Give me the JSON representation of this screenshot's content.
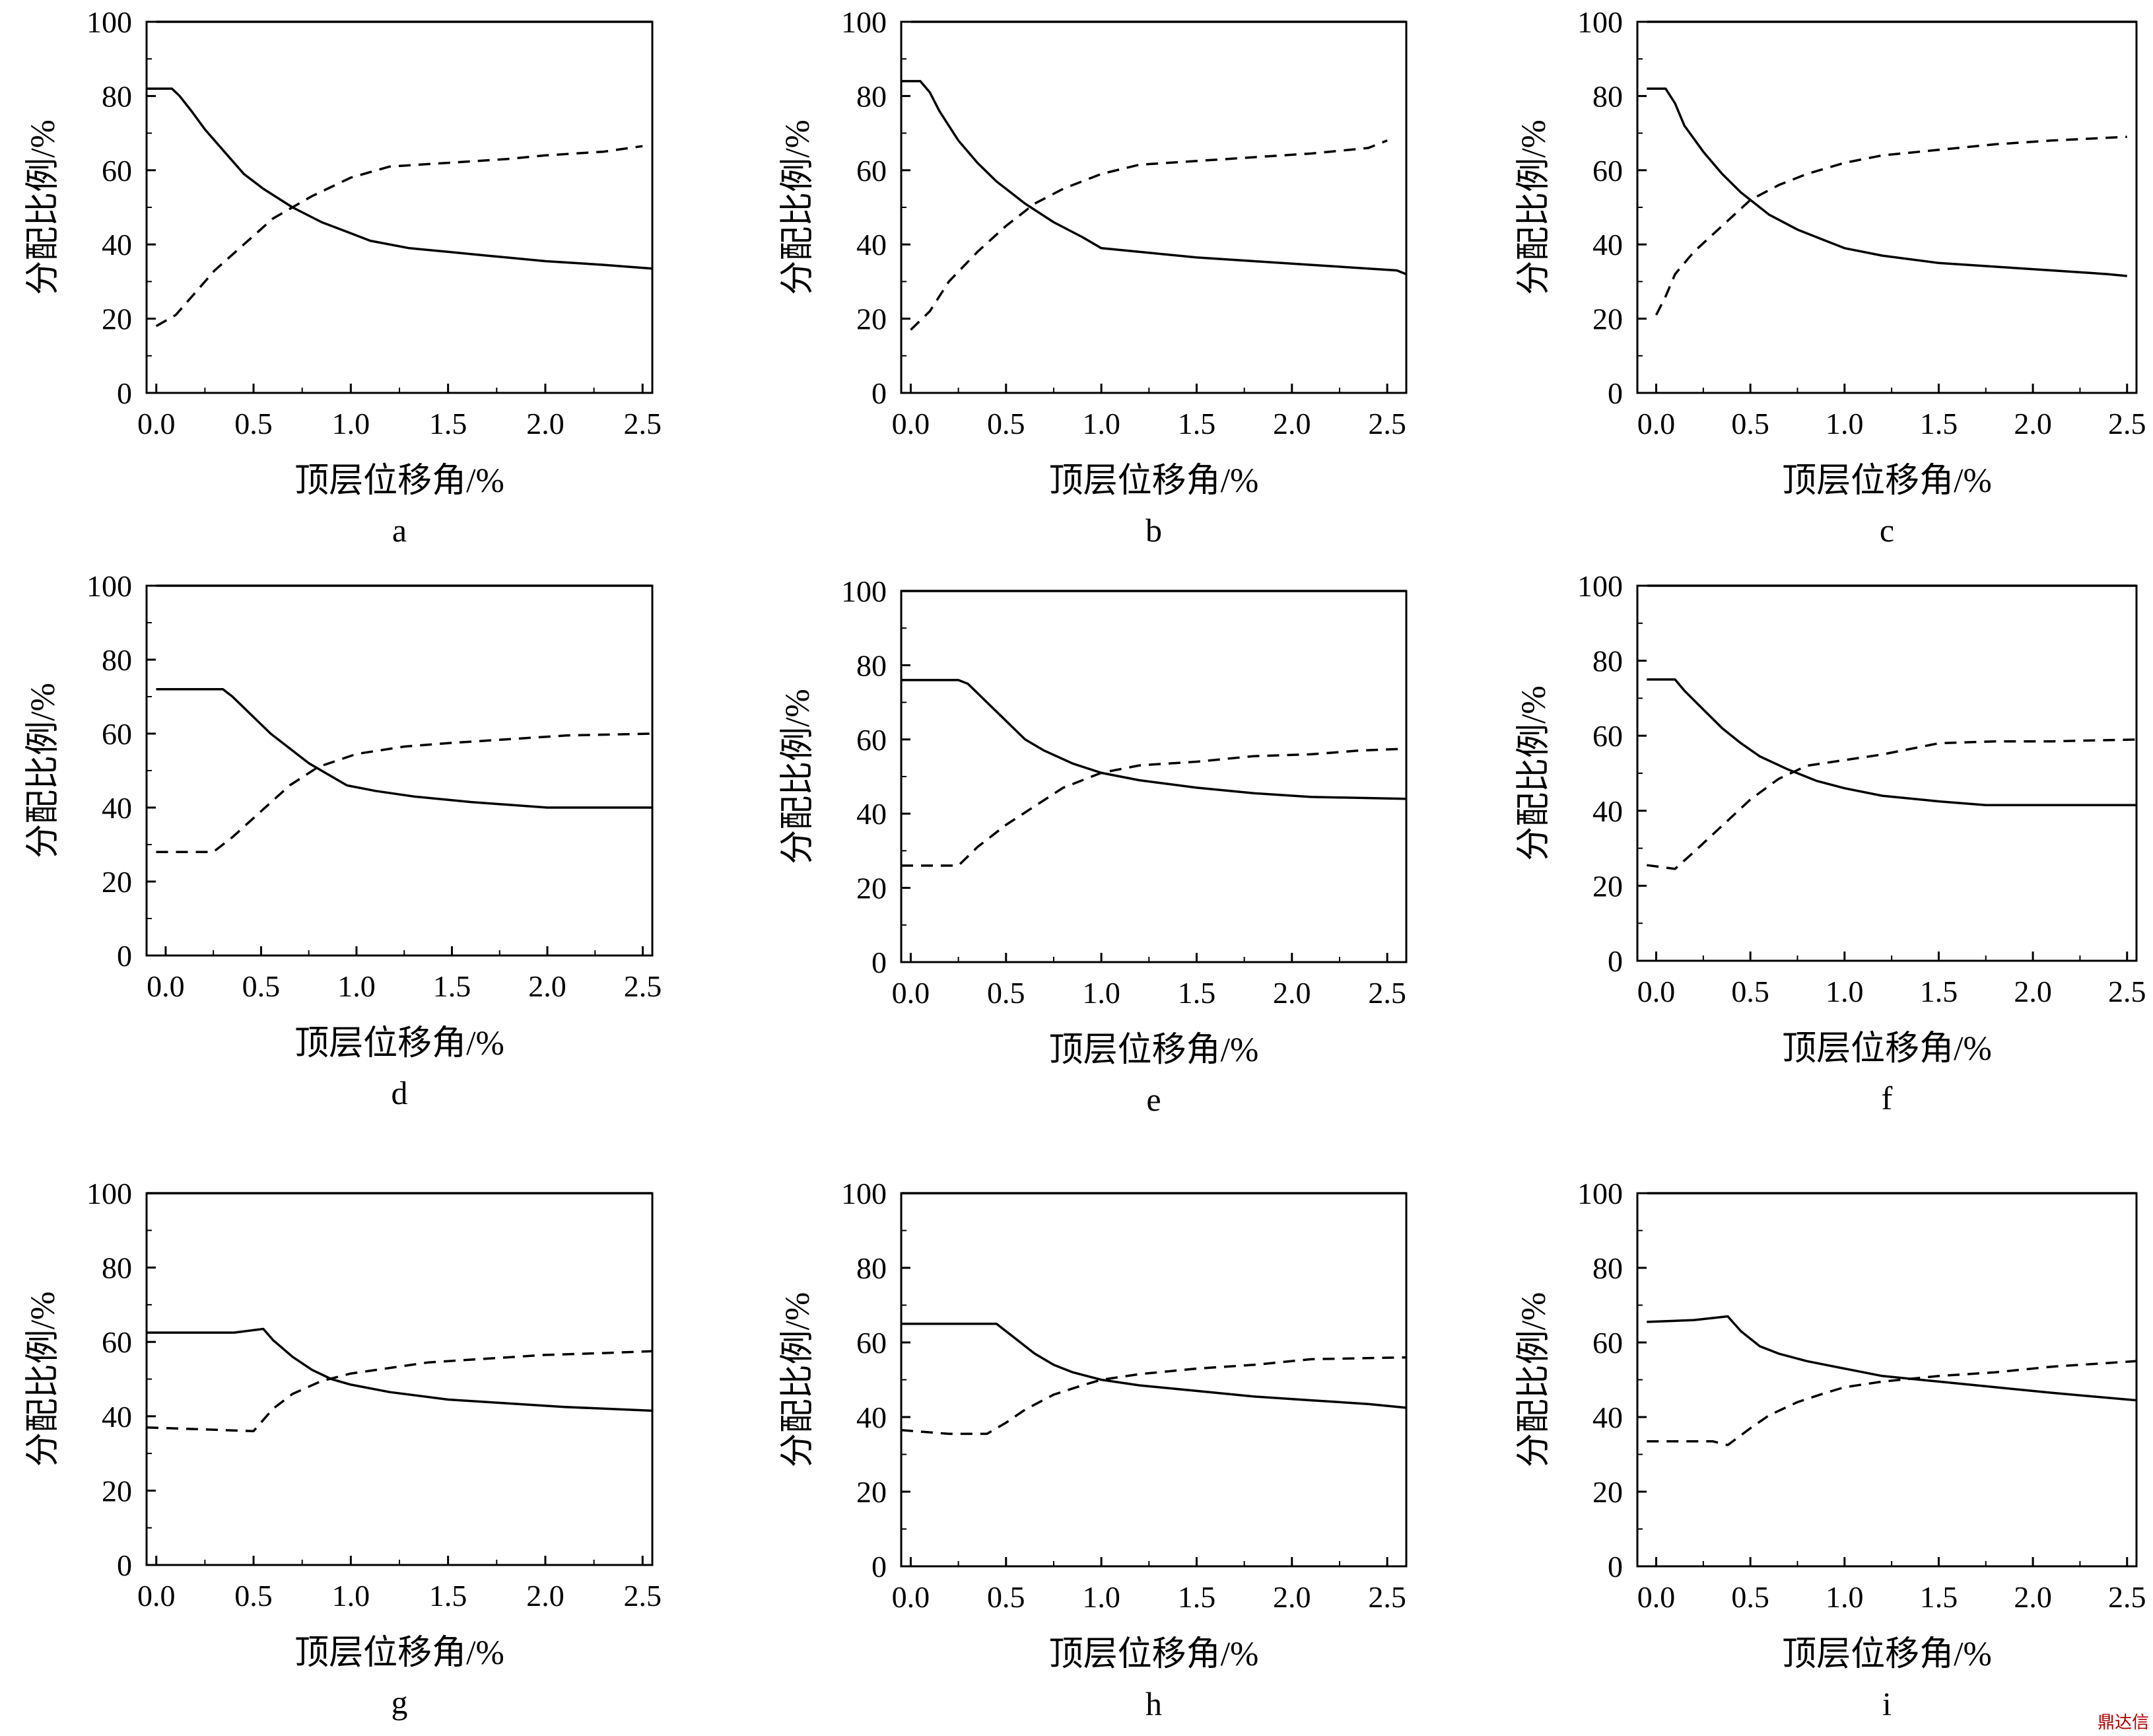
{
  "watermark": "鼎达信",
  "colors": {
    "line": "#000000",
    "background": "#ffffff"
  },
  "chart_data": [
    {
      "type": "line",
      "panel": "a",
      "xlabel": "顶层位移角/%",
      "ylabel": "分配比例/%",
      "xlim": [
        -0.05,
        2.55
      ],
      "ylim": [
        0,
        100
      ],
      "xticks": [
        "0.0",
        "0.5",
        "1.0",
        "1.5",
        "2.0",
        "2.5"
      ],
      "yticks": [
        "0",
        "20",
        "40",
        "60",
        "80",
        "100"
      ],
      "series": [
        {
          "style": "solid",
          "x": [
            0,
            2.55
          ],
          "y": [
            100,
            100
          ]
        },
        {
          "style": "solid",
          "x": [
            -0.05,
            0.08,
            0.12,
            0.18,
            0.25,
            0.35,
            0.45,
            0.55,
            0.7,
            0.85,
            1.0,
            1.1,
            1.3,
            1.5,
            1.7,
            2.0,
            2.3,
            2.55
          ],
          "y": [
            82,
            82,
            80,
            76,
            71,
            65,
            59,
            55,
            50,
            46,
            43,
            41,
            39,
            38,
            37,
            35.5,
            34.5,
            33.5
          ]
        },
        {
          "style": "dashed",
          "x": [
            0.0,
            0.1,
            0.2,
            0.3,
            0.45,
            0.6,
            0.8,
            1.0,
            1.2,
            1.5,
            1.8,
            2.0,
            2.3,
            2.5
          ],
          "y": [
            18,
            21,
            27,
            33,
            40,
            47,
            53,
            58,
            61,
            62,
            63,
            64,
            65,
            66.5
          ]
        }
      ]
    },
    {
      "type": "line",
      "panel": "b",
      "xlabel": "顶层位移角/%",
      "ylabel": "分配比例/%",
      "xlim": [
        -0.05,
        2.6
      ],
      "ylim": [
        0,
        100
      ],
      "xticks": [
        "0.0",
        "0.5",
        "1.0",
        "1.5",
        "2.0",
        "2.5"
      ],
      "yticks": [
        "0",
        "20",
        "40",
        "60",
        "80",
        "100"
      ],
      "series": [
        {
          "style": "solid",
          "x": [
            0,
            2.6
          ],
          "y": [
            100,
            100
          ]
        },
        {
          "style": "solid",
          "x": [
            -0.05,
            0.05,
            0.1,
            0.15,
            0.25,
            0.35,
            0.45,
            0.6,
            0.75,
            0.9,
            1.0,
            1.2,
            1.5,
            1.8,
            2.1,
            2.4,
            2.55,
            2.6
          ],
          "y": [
            84,
            84,
            81,
            76,
            68,
            62,
            57,
            51,
            46,
            42,
            39,
            38,
            36.5,
            35.5,
            34.5,
            33.5,
            33,
            32
          ]
        },
        {
          "style": "dashed",
          "x": [
            0.0,
            0.1,
            0.2,
            0.35,
            0.5,
            0.65,
            0.8,
            1.0,
            1.2,
            1.5,
            1.8,
            2.1,
            2.4,
            2.5
          ],
          "y": [
            17,
            22,
            30,
            38,
            45,
            51,
            55,
            59,
            61.5,
            62.5,
            63.5,
            64.5,
            66,
            68
          ]
        }
      ]
    },
    {
      "type": "line",
      "panel": "c",
      "xlabel": "顶层位移角/%",
      "ylabel": "分配比例/%",
      "xlim": [
        -0.1,
        2.55
      ],
      "ylim": [
        0,
        100
      ],
      "xticks": [
        "0.0",
        "0.5",
        "1.0",
        "1.5",
        "2.0",
        "2.5"
      ],
      "yticks": [
        "0",
        "20",
        "40",
        "60",
        "80",
        "100"
      ],
      "series": [
        {
          "style": "solid",
          "x": [
            -0.05,
            2.55
          ],
          "y": [
            100,
            100
          ]
        },
        {
          "style": "solid",
          "x": [
            -0.05,
            0.05,
            0.1,
            0.15,
            0.25,
            0.35,
            0.45,
            0.6,
            0.75,
            0.9,
            1.0,
            1.2,
            1.5,
            1.8,
            2.1,
            2.4,
            2.5
          ],
          "y": [
            82,
            82,
            78,
            72,
            65,
            59,
            54,
            48,
            44,
            41,
            39,
            37,
            35,
            34,
            33,
            32,
            31.5
          ]
        },
        {
          "style": "dashed",
          "x": [
            0.0,
            0.05,
            0.1,
            0.2,
            0.35,
            0.5,
            0.65,
            0.8,
            1.0,
            1.2,
            1.5,
            1.8,
            2.1,
            2.5
          ],
          "y": [
            21,
            26,
            32,
            38,
            45,
            52,
            56,
            59,
            62,
            64,
            65.5,
            67,
            68,
            69
          ]
        }
      ]
    },
    {
      "type": "line",
      "panel": "d",
      "xlabel": "顶层位移角/%",
      "ylabel": "分配比例/%",
      "xlim": [
        -0.1,
        2.55
      ],
      "ylim": [
        0,
        100
      ],
      "xticks": [
        "0.0",
        "0.5",
        "1.0",
        "1.5",
        "2.0",
        "2.5"
      ],
      "yticks": [
        "0",
        "20",
        "40",
        "60",
        "80",
        "100"
      ],
      "series": [
        {
          "style": "solid",
          "x": [
            -0.05,
            2.55
          ],
          "y": [
            100,
            100
          ]
        },
        {
          "style": "solid",
          "x": [
            -0.05,
            0.3,
            0.35,
            0.45,
            0.55,
            0.65,
            0.75,
            0.85,
            0.95,
            1.1,
            1.3,
            1.6,
            2.0,
            2.55
          ],
          "y": [
            72,
            72,
            70,
            65,
            60,
            56,
            52,
            49,
            46,
            44.5,
            43,
            41.5,
            40,
            40
          ]
        },
        {
          "style": "dashed",
          "x": [
            -0.05,
            0.25,
            0.35,
            0.5,
            0.65,
            0.8,
            1.0,
            1.25,
            1.5,
            1.8,
            2.1,
            2.55
          ],
          "y": [
            28,
            28,
            32,
            39,
            46,
            51,
            54.5,
            56.5,
            57.5,
            58.5,
            59.5,
            60
          ]
        }
      ]
    },
    {
      "type": "line",
      "panel": "e",
      "xlabel": "顶层位移角/%",
      "ylabel": "分配比例/%",
      "xlim": [
        -0.05,
        2.6
      ],
      "ylim": [
        0,
        100
      ],
      "xticks": [
        "0.0",
        "0.5",
        "1.0",
        "1.5",
        "2.0",
        "2.5"
      ],
      "yticks": [
        "0",
        "20",
        "40",
        "60",
        "80",
        "100"
      ],
      "series": [
        {
          "style": "solid",
          "x": [
            -0.05,
            2.6
          ],
          "y": [
            100,
            100
          ]
        },
        {
          "style": "solid",
          "x": [
            -0.05,
            0.25,
            0.3,
            0.4,
            0.5,
            0.6,
            0.7,
            0.85,
            1.0,
            1.2,
            1.5,
            1.8,
            2.1,
            2.6
          ],
          "y": [
            76,
            76,
            75,
            70,
            65,
            60,
            57,
            53.5,
            51,
            49,
            47,
            45.5,
            44.5,
            44
          ]
        },
        {
          "style": "dashed",
          "x": [
            -0.05,
            0.25,
            0.35,
            0.5,
            0.65,
            0.8,
            1.0,
            1.2,
            1.5,
            1.8,
            2.1,
            2.35,
            2.6
          ],
          "y": [
            26,
            26,
            31,
            37,
            42,
            47,
            51,
            53,
            54,
            55.5,
            56,
            57,
            57.5
          ]
        }
      ]
    },
    {
      "type": "line",
      "panel": "f",
      "xlabel": "顶层位移角/%",
      "ylabel": "分配比例/%",
      "xlim": [
        -0.1,
        2.55
      ],
      "ylim": [
        0,
        100
      ],
      "xticks": [
        "0.0",
        "0.5",
        "1.0",
        "1.5",
        "2.0",
        "2.5"
      ],
      "yticks": [
        "0",
        "20",
        "40",
        "60",
        "80",
        "100"
      ],
      "series": [
        {
          "style": "solid",
          "x": [
            -0.05,
            2.55
          ],
          "y": [
            100,
            100
          ]
        },
        {
          "style": "solid",
          "x": [
            -0.05,
            0.1,
            0.15,
            0.25,
            0.35,
            0.45,
            0.55,
            0.7,
            0.85,
            1.0,
            1.2,
            1.5,
            1.75,
            2.1,
            2.55
          ],
          "y": [
            75,
            75,
            72,
            67,
            62,
            58,
            54.5,
            51,
            48,
            46,
            44,
            42.5,
            41.5,
            41.5,
            41.5
          ]
        },
        {
          "style": "dashed",
          "x": [
            -0.05,
            0.1,
            0.2,
            0.35,
            0.5,
            0.65,
            0.8,
            1.0,
            1.2,
            1.5,
            1.8,
            2.1,
            2.55
          ],
          "y": [
            25.5,
            24.5,
            29,
            36,
            43,
            48.5,
            52,
            53.5,
            55,
            58,
            58.5,
            58.5,
            59
          ]
        }
      ]
    },
    {
      "type": "line",
      "panel": "g",
      "xlabel": "顶层位移角/%",
      "ylabel": "分配比例/%",
      "xlim": [
        -0.05,
        2.55
      ],
      "ylim": [
        0,
        100
      ],
      "xticks": [
        "0.0",
        "0.5",
        "1.0",
        "1.5",
        "2.0",
        "2.5"
      ],
      "yticks": [
        "0",
        "20",
        "40",
        "60",
        "80",
        "100"
      ],
      "series": [
        {
          "style": "solid",
          "x": [
            -0.05,
            2.55
          ],
          "y": [
            100,
            100
          ]
        },
        {
          "style": "solid",
          "x": [
            -0.05,
            0.4,
            0.55,
            0.6,
            0.7,
            0.8,
            0.9,
            1.0,
            1.2,
            1.5,
            1.8,
            2.1,
            2.55
          ],
          "y": [
            62.5,
            62.5,
            63.5,
            60.5,
            56,
            52.5,
            50,
            48.5,
            46.5,
            44.5,
            43.5,
            42.5,
            41.5
          ]
        },
        {
          "style": "dashed",
          "x": [
            -0.05,
            0.5,
            0.6,
            0.7,
            0.85,
            1.0,
            1.2,
            1.4,
            1.7,
            2.0,
            2.3,
            2.55
          ],
          "y": [
            37,
            36,
            42,
            46,
            49.5,
            51.5,
            53,
            54.5,
            55.5,
            56.5,
            57,
            57.5
          ]
        }
      ]
    },
    {
      "type": "line",
      "panel": "h",
      "xlabel": "顶层位移角/%",
      "ylabel": "分配比例/%",
      "xlim": [
        -0.05,
        2.6
      ],
      "ylim": [
        0,
        100
      ],
      "xticks": [
        "0.0",
        "0.5",
        "1.0",
        "1.5",
        "2.0",
        "2.5"
      ],
      "yticks": [
        "0",
        "20",
        "40",
        "60",
        "80",
        "100"
      ],
      "series": [
        {
          "style": "solid",
          "x": [
            -0.05,
            2.6
          ],
          "y": [
            100,
            100
          ]
        },
        {
          "style": "solid",
          "x": [
            -0.05,
            0.45,
            0.55,
            0.65,
            0.75,
            0.85,
            1.0,
            1.2,
            1.5,
            1.8,
            2.1,
            2.4,
            2.6
          ],
          "y": [
            65,
            65,
            61,
            57,
            54,
            52,
            50,
            48.5,
            47,
            45.5,
            44.5,
            43.5,
            42.5
          ]
        },
        {
          "style": "dashed",
          "x": [
            -0.05,
            0.2,
            0.4,
            0.5,
            0.6,
            0.75,
            0.9,
            1.0,
            1.2,
            1.5,
            1.8,
            2.1,
            2.6
          ],
          "y": [
            36.5,
            35.5,
            35.5,
            38.5,
            42,
            46,
            48.5,
            50,
            51.5,
            53,
            54,
            55.5,
            56
          ]
        }
      ]
    },
    {
      "type": "line",
      "panel": "i",
      "xlabel": "顶层位移角/%",
      "ylabel": "分配比例/%",
      "xlim": [
        -0.1,
        2.55
      ],
      "ylim": [
        0,
        100
      ],
      "xticks": [
        "0.0",
        "0.5",
        "1.0",
        "1.5",
        "2.0",
        "2.5"
      ],
      "yticks": [
        "0",
        "20",
        "40",
        "60",
        "80",
        "100"
      ],
      "series": [
        {
          "style": "solid",
          "x": [
            -0.05,
            2.55
          ],
          "y": [
            100,
            100
          ]
        },
        {
          "style": "solid",
          "x": [
            -0.05,
            0.2,
            0.38,
            0.45,
            0.55,
            0.65,
            0.8,
            1.0,
            1.2,
            1.5,
            1.8,
            2.1,
            2.55
          ],
          "y": [
            65.5,
            66,
            67,
            63,
            59,
            57,
            55,
            53,
            51,
            49.5,
            48,
            46.5,
            44.5
          ]
        },
        {
          "style": "dashed",
          "x": [
            -0.05,
            0.3,
            0.38,
            0.5,
            0.6,
            0.75,
            0.9,
            1.0,
            1.2,
            1.5,
            1.8,
            2.1,
            2.55
          ],
          "y": [
            33.5,
            33.5,
            32.5,
            37,
            40.5,
            44,
            46.5,
            48,
            49.5,
            51,
            52,
            53.5,
            55
          ]
        }
      ]
    }
  ]
}
